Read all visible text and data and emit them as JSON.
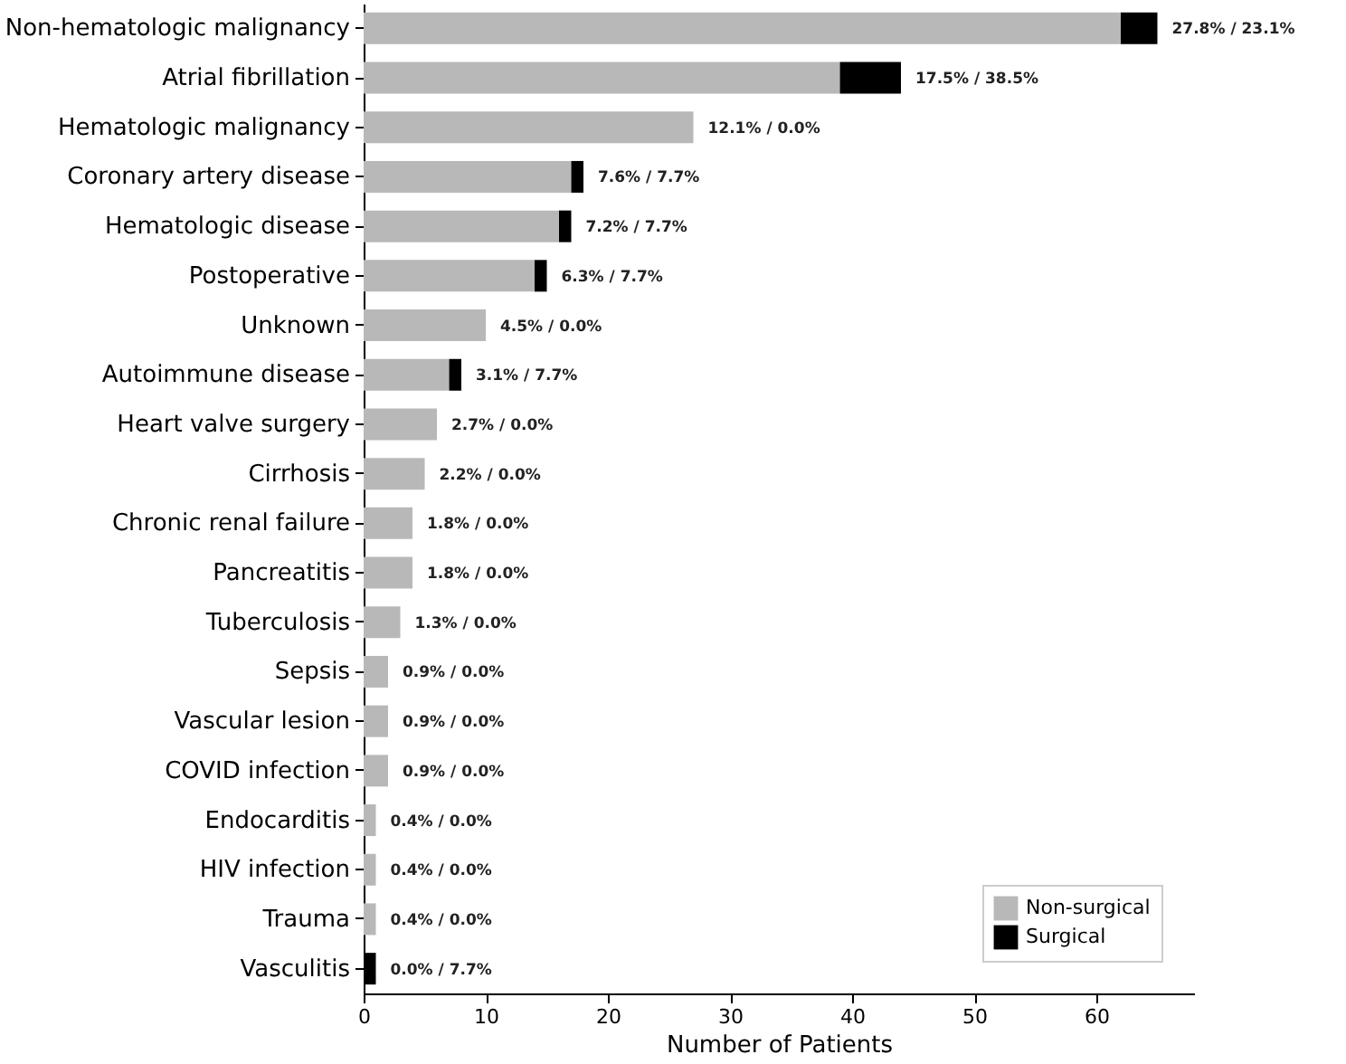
{
  "chart_data": {
    "type": "bar",
    "orientation": "horizontal",
    "stacked": true,
    "xlabel": "Number of Patients",
    "xlim": [
      0,
      68
    ],
    "xticks": [
      0,
      10,
      20,
      30,
      40,
      50,
      60
    ],
    "grid": false,
    "legend": "bottom right",
    "categories": [
      "Non-hematologic malignancy",
      "Atrial fibrillation",
      "Hematologic malignancy",
      "Coronary artery disease",
      "Hematologic disease",
      "Postoperative",
      "Unknown",
      "Autoimmune disease",
      "Heart valve surgery",
      "Cirrhosis",
      "Chronic renal failure",
      "Pancreatitis",
      "Tuberculosis",
      "Sepsis",
      "Vascular lesion",
      "COVID infection",
      "Endocarditis",
      "HIV infection",
      "Trauma",
      "Vasculitis"
    ],
    "series": [
      {
        "name": "Non-surgical",
        "color": "#b8b8b8",
        "values": [
          62,
          39,
          27,
          17,
          16,
          14,
          10,
          7,
          6,
          5,
          4,
          4,
          3,
          2,
          2,
          2,
          1,
          1,
          1,
          0
        ]
      },
      {
        "name": "Surgical",
        "color": "#000000",
        "values": [
          3,
          5,
          0,
          1,
          1,
          1,
          0,
          1,
          0,
          0,
          0,
          0,
          0,
          0,
          0,
          0,
          0,
          0,
          0,
          1
        ]
      }
    ],
    "annotations": [
      {
        "text": "27.8% / 23.1%",
        "x": 65,
        "y": "Non-hematologic malignancy"
      },
      {
        "text": "17.5% / 38.5%",
        "x": 44,
        "y": "Atrial fibrillation"
      },
      {
        "text": "12.1% / 0.0%",
        "x": 27,
        "y": "Hematologic malignancy"
      },
      {
        "text": "7.6% / 7.7%",
        "x": 18,
        "y": "Coronary artery disease"
      },
      {
        "text": "7.2% / 7.7%",
        "x": 17,
        "y": "Hematologic disease"
      },
      {
        "text": "6.3% / 7.7%",
        "x": 15,
        "y": "Postoperative"
      },
      {
        "text": "4.5% / 0.0%",
        "x": 10,
        "y": "Unknown"
      },
      {
        "text": "3.1% / 7.7%",
        "x": 8,
        "y": "Autoimmune disease"
      },
      {
        "text": "2.7% / 0.0%",
        "x": 6,
        "y": "Heart valve surgery"
      },
      {
        "text": "2.2% / 0.0%",
        "x": 5,
        "y": "Cirrhosis"
      },
      {
        "text": "1.8% / 0.0%",
        "x": 4,
        "y": "Chronic renal failure"
      },
      {
        "text": "1.8% / 0.0%",
        "x": 4,
        "y": "Pancreatitis"
      },
      {
        "text": "1.3% / 0.0%",
        "x": 3,
        "y": "Tuberculosis"
      },
      {
        "text": "0.9% / 0.0%",
        "x": 2,
        "y": "Sepsis"
      },
      {
        "text": "0.9% / 0.0%",
        "x": 2,
        "y": "Vascular lesion"
      },
      {
        "text": "0.9% / 0.0%",
        "x": 2,
        "y": "COVID infection"
      },
      {
        "text": "0.4% / 0.0%",
        "x": 1,
        "y": "Endocarditis"
      },
      {
        "text": "0.4% / 0.0%",
        "x": 1,
        "y": "HIV infection"
      },
      {
        "text": "0.4% / 0.0%",
        "x": 1,
        "y": "Trauma"
      },
      {
        "text": "0.0% / 7.7%",
        "x": 1,
        "y": "Vasculitis"
      }
    ]
  }
}
